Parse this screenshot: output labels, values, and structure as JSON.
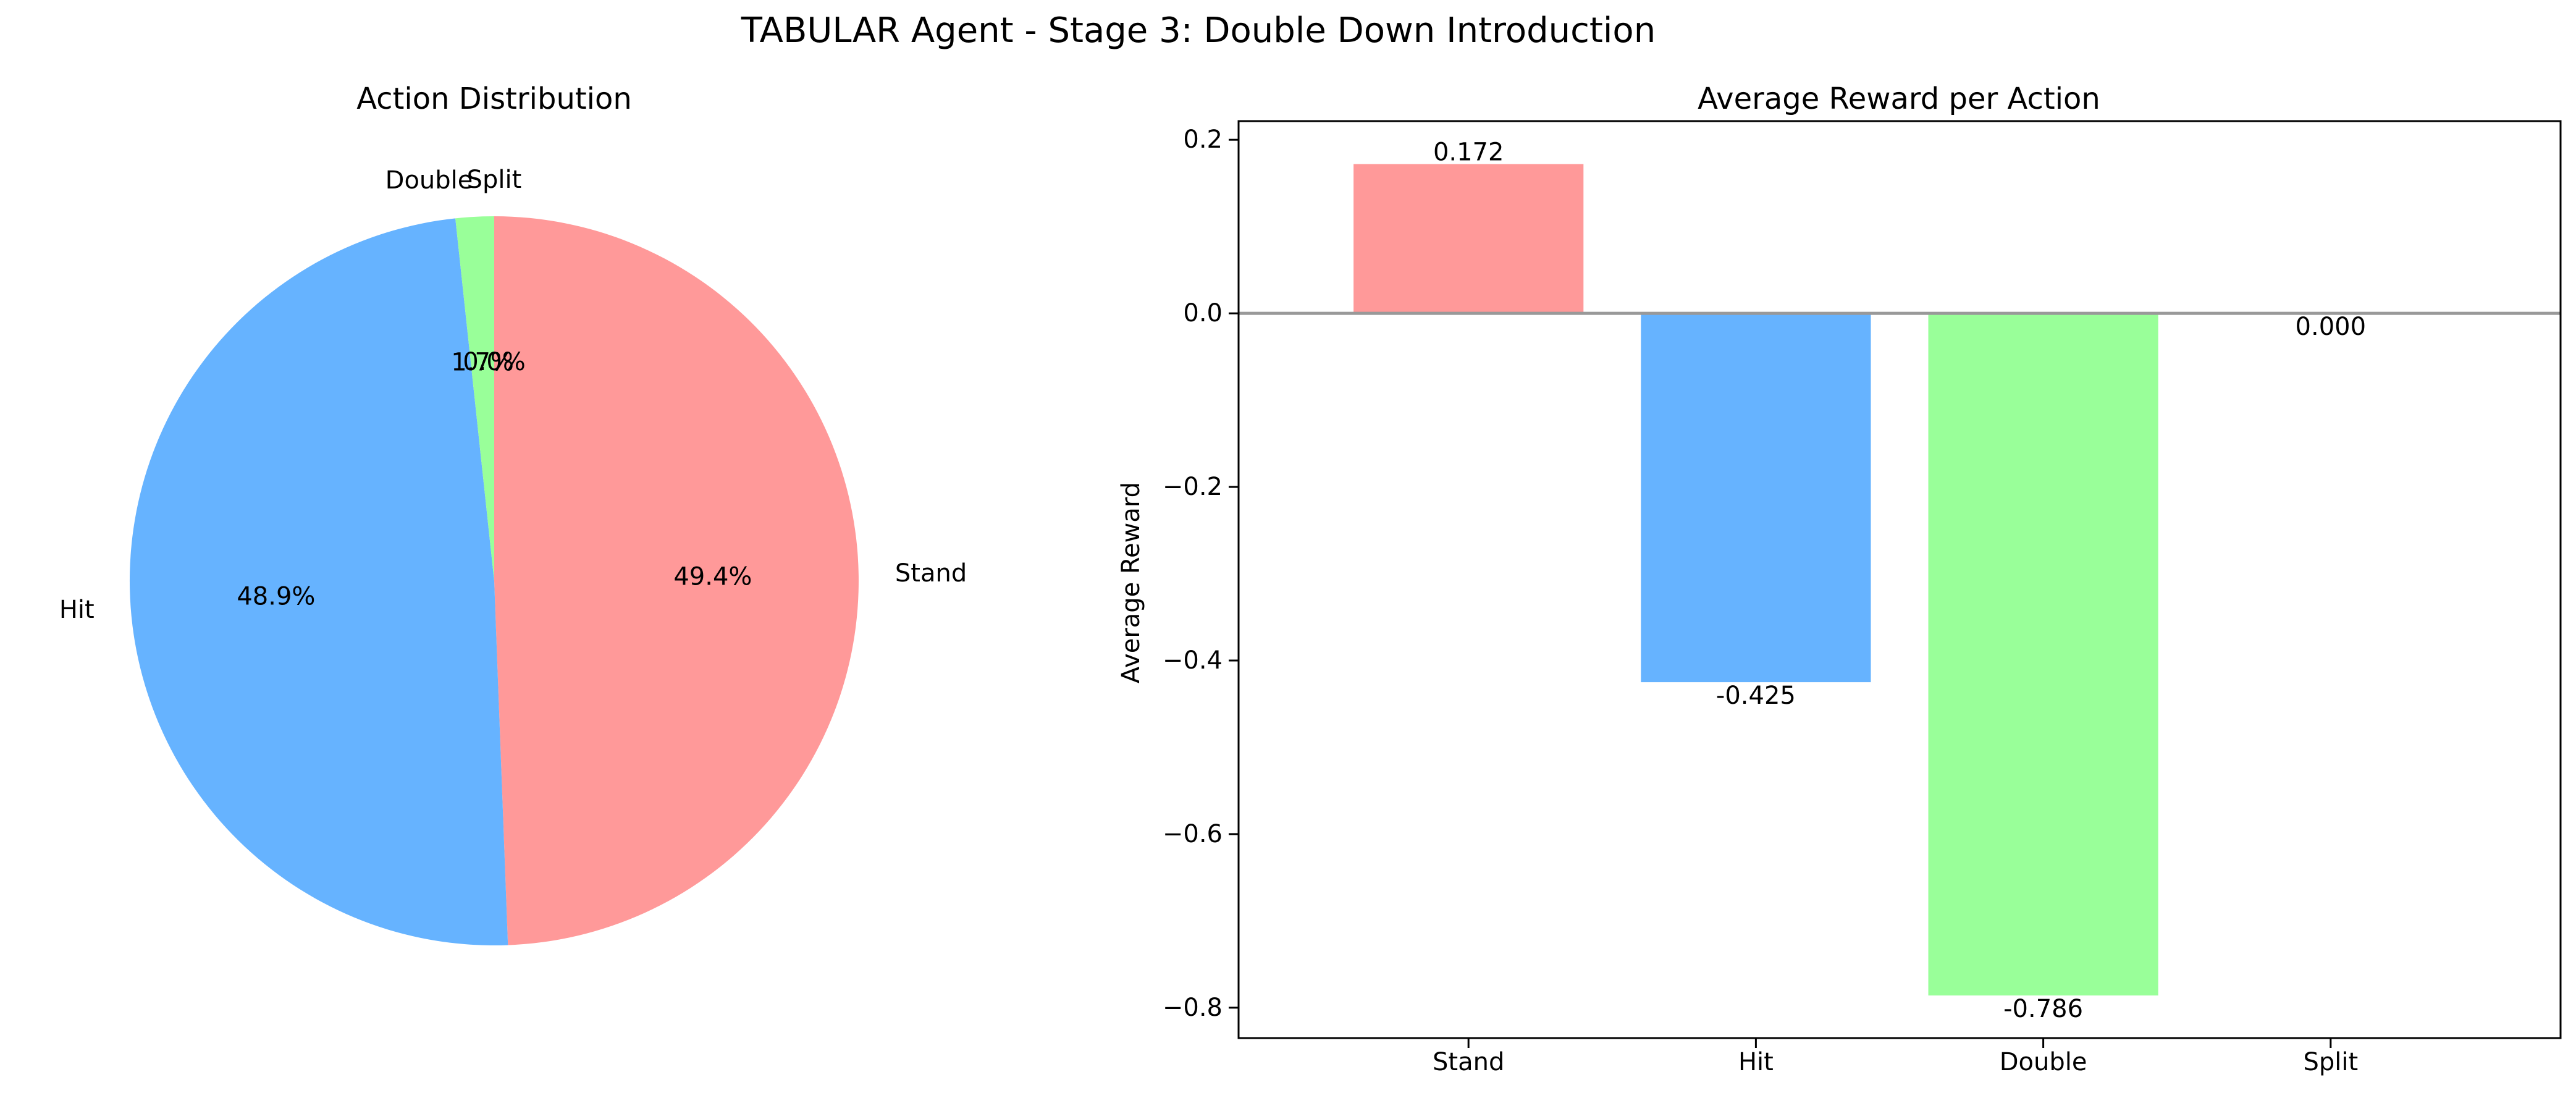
{
  "figure": {
    "title": "TABULAR Agent - Stage 3: Double Down Introduction"
  },
  "chart_data": [
    {
      "type": "pie",
      "title": "Action Distribution",
      "labels": [
        "Stand",
        "Hit",
        "Double",
        "Split"
      ],
      "values": [
        49.4,
        48.9,
        1.7,
        0.0
      ],
      "value_labels": [
        "49.4%",
        "48.9%",
        "1.7%",
        "0.0%"
      ],
      "colors": [
        "#ff9999",
        "#66b3ff",
        "#99ff99",
        "#ffcc99"
      ],
      "start_angle_deg": 90,
      "direction": "clockwise",
      "legend": "none"
    },
    {
      "type": "bar",
      "title": "Average Reward per Action",
      "categories": [
        "Stand",
        "Hit",
        "Double",
        "Split"
      ],
      "values": [
        0.172,
        -0.425,
        -0.786,
        0.0
      ],
      "value_labels": [
        "0.172",
        "-0.425",
        "-0.786",
        "0.000"
      ],
      "colors": [
        "#ff9999",
        "#66b3ff",
        "#99ff99",
        "#ffcc99"
      ],
      "xlabel": "",
      "ylabel": "Average Reward",
      "ylim": [
        -0.835,
        0.2215
      ],
      "yticks": [
        0.2,
        0.0,
        -0.2,
        -0.4,
        -0.6,
        -0.8
      ],
      "ytick_labels": [
        "0.2",
        "0.0",
        "−0.2",
        "−0.4",
        "−0.6",
        "−0.8"
      ],
      "zero_line_color": "#999999",
      "grid": false,
      "legend": "none"
    }
  ]
}
